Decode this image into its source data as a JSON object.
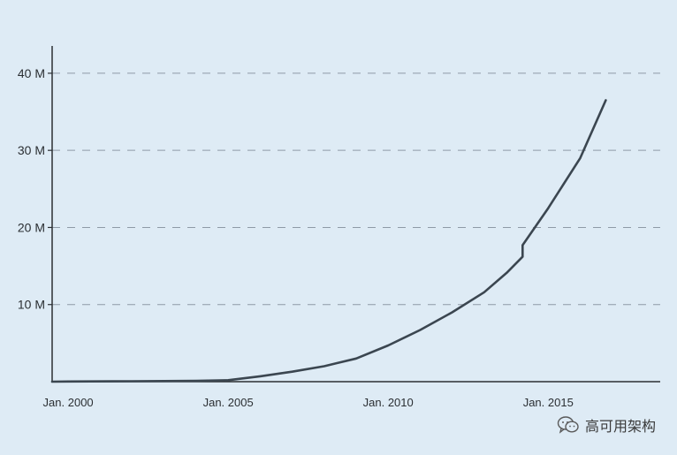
{
  "chart_data": {
    "type": "line",
    "title": "",
    "xlabel": "",
    "ylabel": "",
    "x_ticks": [
      {
        "label": "Jan. 2000",
        "x": 2000.0
      },
      {
        "label": "Jan. 2005",
        "x": 2005.0
      },
      {
        "label": "Jan. 2010",
        "x": 2010.0
      },
      {
        "label": "Jan. 2015",
        "x": 2015.0
      }
    ],
    "y_ticks": [
      {
        "label": "10 M",
        "y": 10
      },
      {
        "label": "20 M",
        "y": 20
      },
      {
        "label": "30 M",
        "y": 30
      },
      {
        "label": "40 M",
        "y": 40
      }
    ],
    "xlim": [
      1999.5,
      2018.5
    ],
    "ylim": [
      0,
      44
    ],
    "y_unit": "M",
    "grid": "horizontal dashed",
    "series": [
      {
        "color": "#3b4650",
        "x": [
          1999.5,
          2000.0,
          2002.0,
          2004.0,
          2005.0,
          2006.0,
          2007.0,
          2008.0,
          2009.0,
          2010.0,
          2011.0,
          2012.0,
          2013.0,
          2013.7,
          2014.2,
          2014.2,
          2015.0,
          2016.0,
          2016.8
        ],
        "y": [
          0.0,
          0.02,
          0.06,
          0.1,
          0.2,
          0.7,
          1.3,
          2.0,
          3.0,
          4.7,
          6.7,
          9.0,
          11.6,
          14.1,
          16.2,
          17.7,
          22.5,
          29.0,
          36.5
        ]
      }
    ]
  },
  "watermark": {
    "text": "高可用架构",
    "icon": "wechat-icon"
  },
  "colors": {
    "background": "#deebf5",
    "line": "#3b4650",
    "axis": "#2b2f33",
    "grid": "#8e9aa6"
  }
}
